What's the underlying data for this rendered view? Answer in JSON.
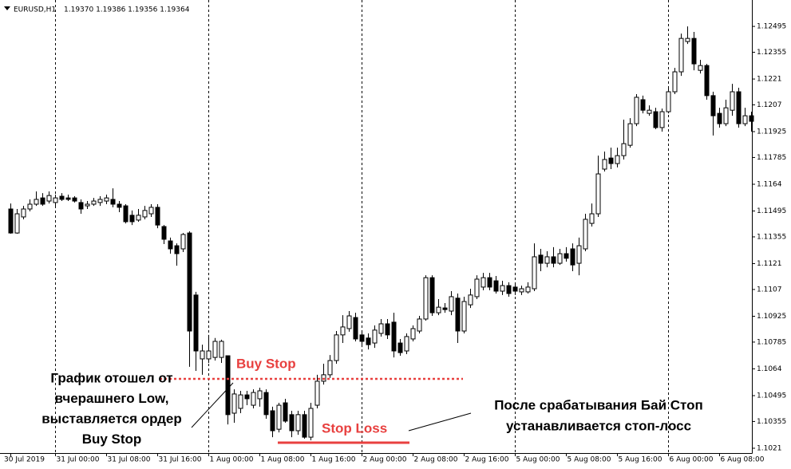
{
  "chart_data": {
    "type": "candlestick",
    "symbol": "EURUSD,H1",
    "header_prices": "1.19370 1.19386 1.19356 1.19364",
    "open": [
      1.11506,
      1.11376,
      1.11463,
      1.11506,
      1.11532,
      1.11566,
      1.11549,
      1.11541,
      1.11575,
      1.11566,
      1.11566,
      1.11541,
      1.11523,
      1.11532,
      1.11541,
      1.11549,
      1.11558,
      1.11532,
      1.11523,
      1.11472,
      1.11446,
      1.11463,
      1.1148,
      1.11515,
      1.11411,
      1.11333,
      1.11307,
      1.1129,
      1.11376,
      1.1104,
      1.10694,
      1.10694,
      1.10702,
      1.10702,
      1.10711,
      1.104,
      1.10426,
      1.10499,
      1.10443,
      1.10478,
      1.10512,
      1.10413,
      1.10313,
      1.10456,
      1.10392,
      1.10305,
      1.10392,
      1.1027,
      1.10443,
      1.10573,
      1.10608,
      1.10685,
      1.10824,
      1.10858,
      1.10918,
      1.10824,
      1.10807,
      1.1078,
      1.10832,
      1.10884,
      1.10893,
      1.1078,
      1.10737,
      1.10802,
      1.10845,
      1.1091,
      1.11134,
      1.10944,
      1.1097,
      1.10953,
      1.11023,
      1.10845,
      1.10987,
      1.11031,
      1.11083,
      1.11134,
      1.11117,
      1.11061,
      1.11091,
      1.11083,
      1.11057,
      1.11057,
      1.11074,
      1.11256,
      1.11212,
      1.11247,
      1.11212,
      1.11264,
      1.1129,
      1.11212,
      1.1129,
      1.11428,
      1.1148,
      1.11722,
      1.11782,
      1.11752,
      1.11795,
      1.11851,
      1.11968,
      1.12098,
      1.12024,
      1.12033,
      1.11947,
      1.12033,
      1.12141,
      1.12249,
      1.12413,
      1.1243,
      1.12257,
      1.12283,
      1.1212,
      1.12024,
      1.11968,
      1.12041,
      1.12141,
      1.11968,
      1.12011
    ],
    "high": [
      1.11536,
      1.11506,
      1.11523,
      1.11558,
      1.11601,
      1.11592,
      1.11601,
      1.11584,
      1.11592,
      1.11584,
      1.11575,
      1.11558,
      1.11549,
      1.11566,
      1.11575,
      1.11584,
      1.11618,
      1.11549,
      1.11532,
      1.11498,
      1.11506,
      1.11523,
      1.11532,
      1.11532,
      1.11419,
      1.11351,
      1.1132,
      1.11376,
      1.11385,
      1.11057,
      1.10771,
      1.10824,
      1.10807,
      1.10798,
      1.10711,
      1.10529,
      1.10521,
      1.10521,
      1.10529,
      1.10538,
      1.10529,
      1.10435,
      1.10456,
      1.10478,
      1.10413,
      1.10413,
      1.10413,
      1.10456,
      1.10608,
      1.10668,
      1.10715,
      1.10845,
      1.10931,
      1.10953,
      1.10944,
      1.10845,
      1.10832,
      1.10875,
      1.1091,
      1.1091,
      1.10944,
      1.10802,
      1.10832,
      1.10875,
      1.10927,
      1.11147,
      1.11147,
      1.11018,
      1.10996,
      1.11061,
      1.11048,
      1.11031,
      1.11074,
      1.11147,
      1.1116,
      1.1116,
      1.11143,
      1.11117,
      1.11109,
      1.11104,
      1.11091,
      1.11109,
      1.1132,
      1.1129,
      1.11277,
      1.11299,
      1.1129,
      1.11299,
      1.1132,
      1.11351,
      1.1148,
      1.11536,
      1.11795,
      1.11817,
      1.11838,
      1.11838,
      1.1199,
      1.11998,
      1.12128,
      1.1212,
      1.12067,
      1.12054,
      1.1205,
      1.12163,
      1.1227,
      1.12456,
      1.12495,
      1.12465,
      1.12314,
      1.12292,
      1.12141,
      1.12054,
      1.12098,
      1.12184,
      1.12163,
      1.12054,
      1.12033
    ],
    "low": [
      1.11372,
      1.11372,
      1.1145,
      1.11493,
      1.11523,
      1.11523,
      1.11536,
      1.11523,
      1.11549,
      1.11549,
      1.11541,
      1.1148,
      1.11506,
      1.11523,
      1.11523,
      1.11532,
      1.11515,
      1.11489,
      1.11428,
      1.11419,
      1.11437,
      1.1145,
      1.11463,
      1.11402,
      1.11316,
      1.11264,
      1.11199,
      1.11273,
      1.10651,
      1.10629,
      1.10608,
      1.10672,
      1.10685,
      1.10672,
      1.10339,
      1.10348,
      1.104,
      1.10443,
      1.10426,
      1.10435,
      1.1037,
      1.1027,
      1.10296,
      1.10348,
      1.1027,
      1.10283,
      1.10262,
      1.10253,
      1.10426,
      1.10555,
      1.10591,
      1.10668,
      1.1078,
      1.10841,
      1.10789,
      1.10758,
      1.10745,
      1.10754,
      1.10815,
      1.10802,
      1.10702,
      1.10711,
      1.1072,
      1.10789,
      1.10832,
      1.10901,
      1.10927,
      1.10931,
      1.10944,
      1.10931,
      1.1078,
      1.10832,
      1.1097,
      1.11018,
      1.11066,
      1.11066,
      1.11048,
      1.1104,
      1.11031,
      1.1104,
      1.1104,
      1.11048,
      1.11061,
      1.11169,
      1.1119,
      1.1119,
      1.11203,
      1.11221,
      1.11169,
      1.11147,
      1.11277,
      1.11411,
      1.11463,
      1.11709,
      1.11722,
      1.11731,
      1.11774,
      1.11838,
      1.11955,
      1.12024,
      1.12011,
      1.11938,
      1.11925,
      1.12024,
      1.12128,
      1.12227,
      1.124,
      1.12257,
      1.1224,
      1.12098,
      1.11904,
      1.11947,
      1.11955,
      1.12011,
      1.11947,
      1.11955,
      1.11925
    ],
    "close": [
      1.11376,
      1.1148,
      1.11506,
      1.11532,
      1.11558,
      1.11532,
      1.11579,
      1.11566,
      1.11558,
      1.11558,
      1.11549,
      1.11506,
      1.11532,
      1.11549,
      1.11558,
      1.11566,
      1.11532,
      1.11515,
      1.11437,
      1.11437,
      1.11472,
      1.11498,
      1.11515,
      1.11419,
      1.11342,
      1.1129,
      1.11264,
      1.11368,
      1.10845,
      1.10737,
      1.10737,
      1.10737,
      1.10789,
      1.10789,
      1.10392,
      1.10504,
      1.10499,
      1.10478,
      1.10512,
      1.10521,
      1.10392,
      1.10305,
      1.10443,
      1.10357,
      1.10305,
      1.10392,
      1.1027,
      1.10426,
      1.10573,
      1.10608,
      1.10685,
      1.10824,
      1.10867,
      1.10927,
      1.10802,
      1.10789,
      1.10771,
      1.1085,
      1.10884,
      1.10824,
      1.10737,
      1.10728,
      1.10815,
      1.10858,
      1.1091,
      1.11134,
      1.10944,
      1.10974,
      1.10961,
      1.11031,
      1.10845,
      1.11005,
      1.1104,
      1.11126,
      1.11134,
      1.11083,
      1.11061,
      1.11091,
      1.11048,
      1.11061,
      1.11074,
      1.11083,
      1.11247,
      1.11212,
      1.11247,
      1.11212,
      1.11264,
      1.11239,
      1.11203,
      1.11307,
      1.1145,
      1.1148,
      1.11696,
      1.11774,
      1.11752,
      1.11795,
      1.1186,
      1.11968,
      1.12111,
      1.12041,
      1.12041,
      1.11947,
      1.12033,
      1.12141,
      1.12249,
      1.1243,
      1.1243,
      1.12292,
      1.12283,
      1.1212,
      1.12011,
      1.11968,
      1.12054,
      1.12141,
      1.11968,
      1.12011,
      1.11981
    ],
    "ylim": [
      1.10184,
      1.12638
    ],
    "yticks": [
      1.12495,
      1.12355,
      1.1221,
      1.1207,
      1.11925,
      1.11785,
      1.1164,
      1.11495,
      1.11355,
      1.1121,
      1.1107,
      1.10925,
      1.10785,
      1.1064,
      1.10495,
      1.10355,
      1.1021
    ],
    "xticks": [
      {
        "value": 0,
        "label": "30 Jul 2019"
      },
      {
        "value": 7,
        "label": "31 Jul 00:00"
      },
      {
        "value": 15,
        "label": "31 Jul 08:00"
      },
      {
        "value": 23,
        "label": "31 Jul 16:00"
      },
      {
        "value": 31,
        "label": "1 Aug 00:00"
      },
      {
        "value": 39,
        "label": "1 Aug 08:00"
      },
      {
        "value": 47,
        "label": "1 Aug 16:00"
      },
      {
        "value": 55,
        "label": "2 Aug 00:00"
      },
      {
        "value": 63,
        "label": "2 Aug 08:00"
      },
      {
        "value": 71,
        "label": "2 Aug 16:00"
      },
      {
        "value": 79,
        "label": "5 Aug 00:00"
      },
      {
        "value": 87,
        "label": "5 Aug 08:00"
      },
      {
        "value": 95,
        "label": "5 Aug 16:00"
      },
      {
        "value": 103,
        "label": "6 Aug 00:00"
      },
      {
        "value": 111,
        "label": "6 Aug 08:00"
      }
    ],
    "day_separators": [
      7,
      31,
      55,
      79,
      103
    ],
    "bull_color": "#ffffff",
    "bear_color": "#000000",
    "levels": [
      {
        "label": "Buy Stop",
        "value": 1.10586,
        "color": "#e8403f",
        "style": "dotted"
      },
      {
        "label": "Stop Loss",
        "value": 1.1024,
        "color": "#e8403f",
        "style": "solid"
      }
    ],
    "annotations": [
      [
        "График отошел от",
        "вчерашнего Low,",
        "выставляется ордер",
        "Buy Stop"
      ],
      [
        "После срабатывания Бай Стоп",
        "устанавливается стоп-лосс"
      ]
    ]
  }
}
